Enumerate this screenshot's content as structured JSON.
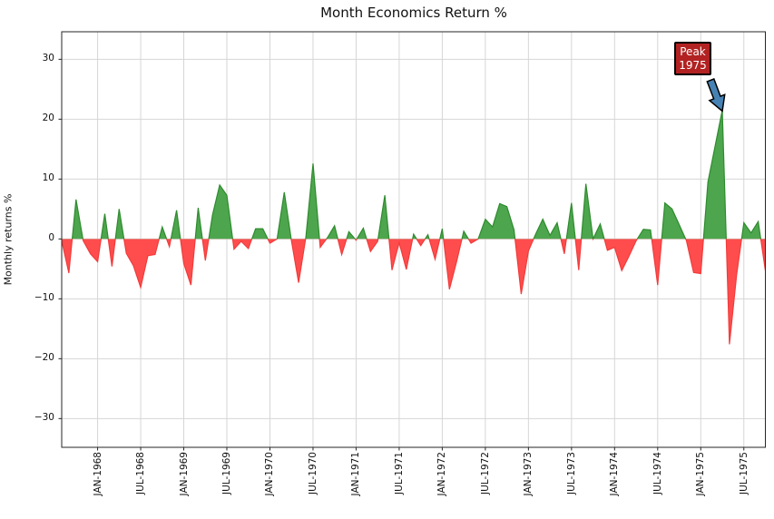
{
  "title": "Month Economics Return %",
  "ylabel": "Monthly returns %",
  "annotation": {
    "line1": "Peak",
    "line2": "1975"
  },
  "chart_data": {
    "type": "area",
    "title": "Month Economics Return %",
    "xlabel": "",
    "ylabel": "Monthly returns %",
    "grid": true,
    "ylim": [
      -34.8,
      34.6
    ],
    "y_tick_values": [
      30,
      20,
      10,
      0,
      -10,
      -20,
      -30
    ],
    "y_tick_labels": [
      "30",
      "20",
      "10",
      "0",
      "−10",
      "−20",
      "−30"
    ],
    "x_tick_labels": [
      "JAN-1968",
      "JUL-1968",
      "JAN-1969",
      "JUL-1969",
      "JAN-1970",
      "JUL-1970",
      "JAN-1971",
      "JUL-1971",
      "JAN-1972",
      "JUL-1972",
      "JAN-1973",
      "JUL-1973",
      "JAN-1974",
      "JUL-1974",
      "JAN-1975",
      "JUL-1975"
    ],
    "x_tick_month_indices": [
      5,
      11,
      17,
      23,
      29,
      35,
      41,
      47,
      53,
      59,
      65,
      71,
      77,
      83,
      89,
      95
    ],
    "values": [
      -0.3,
      -5.7,
      6.6,
      -0.3,
      -2.5,
      -3.8,
      4.2,
      -4.6,
      5.0,
      -2.4,
      -4.5,
      -8.1,
      -2.8,
      -2.6,
      2.0,
      -1.3,
      4.8,
      -4.1,
      -7.7,
      5.2,
      -3.6,
      4.0,
      9.0,
      7.3,
      -1.7,
      -0.4,
      -1.6,
      1.7,
      1.7,
      -0.7,
      0.0,
      7.8,
      -0.3,
      -7.3,
      0.3,
      12.6,
      -1.4,
      0.2,
      2.2,
      -2.6,
      1.2,
      -0.2,
      1.8,
      -2.1,
      -0.4,
      7.3,
      -5.2,
      -0.6,
      -5.1,
      0.8,
      -1.1,
      0.7,
      -3.4,
      1.7,
      -8.4,
      -3.8,
      1.3,
      -0.7,
      0.0,
      3.3,
      2.0,
      5.9,
      5.4,
      1.5,
      -9.2,
      -2.0,
      0.8,
      3.3,
      0.6,
      2.7,
      -2.5,
      6.0,
      -5.2,
      9.2,
      0.0,
      2.5,
      -1.9,
      -1.4,
      -5.3,
      -2.9,
      -0.3,
      1.6,
      1.5,
      -7.7,
      6.0,
      5.0,
      2.4,
      -0.3,
      -5.6,
      -5.8,
      9.5,
      15.5,
      21.5,
      -17.6,
      -6.0,
      2.7,
      1.0,
      2.9,
      -5.3
    ],
    "colors": {
      "positive_fill": "#4da64d",
      "negative_fill": "#ff4d4d",
      "positive_line": "#2e8b2e",
      "negative_line": "#f23b3b",
      "grid": "#d6d6d6",
      "axis": "#262626"
    },
    "annotation": {
      "text": "Peak 1975",
      "box_color": "#b22222",
      "text_color": "#ffffff",
      "arrow_color": "#4682b4",
      "points_to_month_index": 92,
      "points_to_value": 21.5
    }
  }
}
